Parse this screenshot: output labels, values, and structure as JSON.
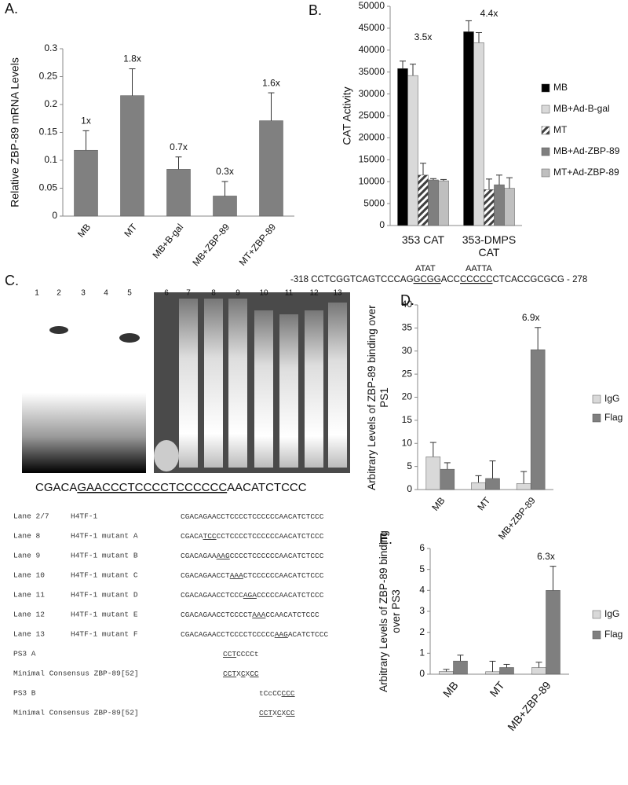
{
  "chart_data": [
    {
      "type": "bar",
      "panel": "A.",
      "ylabel": "Relative ZBP-89 mRNA Levels",
      "categories": [
        "MB",
        "MT",
        "MB+B-gal",
        "MB+ZBP-89",
        "MT+ZBP-89"
      ],
      "values": [
        0.118,
        0.216,
        0.084,
        0.036,
        0.171
      ],
      "errors": [
        0.035,
        0.048,
        0.022,
        0.026,
        0.05
      ],
      "color": "#808080",
      "annotations": [
        "1x",
        "1.8x",
        "0.7x",
        "0.3x",
        "1.6x"
      ],
      "ylim": [
        0,
        0.3
      ],
      "yticks": [
        0,
        0.05,
        0.1,
        0.15,
        0.2,
        0.25,
        0.3
      ]
    },
    {
      "type": "bar",
      "panel": "B.",
      "ylabel": "CAT Activity",
      "categories": [
        "353 CAT",
        "353-DMPS CAT"
      ],
      "series": [
        {
          "name": "MB",
          "color": "#000000",
          "values": [
            35800,
            44200
          ],
          "errors": [
            1700,
            2500
          ]
        },
        {
          "name": "MB+Ad-B-gal",
          "color": "#d9d9d9",
          "values": [
            34200,
            41700
          ],
          "errors": [
            2600,
            2300
          ]
        },
        {
          "name": "MT",
          "color": "#404040",
          "pattern": "hatch",
          "values": [
            11500,
            8200
          ],
          "errors": [
            2700,
            2400
          ]
        },
        {
          "name": "MB+Ad-ZBP-89",
          "color": "#7f7f7f",
          "values": [
            10400,
            9300
          ],
          "errors": [
            300,
            2200
          ]
        },
        {
          "name": "MT+Ad-ZBP-89",
          "color": "#bfbfbf",
          "values": [
            10200,
            8500
          ],
          "errors": [
            300,
            2400
          ]
        }
      ],
      "annotations": [
        "3.5x",
        "4.4x"
      ],
      "legend": "right",
      "ylim": [
        0,
        50000
      ],
      "yticks": [
        0,
        5000,
        10000,
        15000,
        20000,
        25000,
        30000,
        35000,
        40000,
        45000,
        50000
      ]
    },
    {
      "type": "bar",
      "panel": "D.",
      "ylabel": "Arbitrary Levels of ZBP-89 binding over PS1",
      "categories": [
        "MB",
        "MT",
        "MB+ZBP-89"
      ],
      "series": [
        {
          "name": "IgG",
          "color": "#d9d9d9",
          "values": [
            7.1,
            1.5,
            1.3
          ],
          "errors": [
            3.1,
            1.5,
            2.6
          ]
        },
        {
          "name": "Flag",
          "color": "#7f7f7f",
          "values": [
            4.4,
            2.4,
            30.3
          ],
          "errors": [
            1.4,
            3.8,
            4.8
          ]
        }
      ],
      "annotations": [
        null,
        null,
        "6.9x"
      ],
      "legend": "right",
      "ylim": [
        0,
        40
      ],
      "yticks": [
        0,
        5,
        10,
        15,
        20,
        25,
        30,
        35,
        40
      ]
    },
    {
      "type": "bar",
      "panel": "E.",
      "ylabel": "Arbitrary Levels of ZBP-89 binding over PS3",
      "categories": [
        "MB",
        "MT",
        "MB+ZBP-89"
      ],
      "series": [
        {
          "name": "IgG",
          "color": "#d9d9d9",
          "values": [
            0.13,
            0.12,
            0.32
          ],
          "errors": [
            0.1,
            0.5,
            0.25
          ]
        },
        {
          "name": "Flag",
          "color": "#7f7f7f",
          "values": [
            0.63,
            0.32,
            4.0
          ],
          "errors": [
            0.28,
            0.15,
            1.15
          ]
        }
      ],
      "annotations": [
        null,
        null,
        "6.3x"
      ],
      "legend": "right",
      "ylim": [
        0,
        6
      ],
      "yticks": [
        0,
        1,
        2,
        3,
        4,
        5,
        6
      ]
    }
  ],
  "gel": {
    "panel": "C.",
    "lanes": [
      "1",
      "2",
      "3",
      "4",
      "5",
      "6",
      "7",
      "8",
      "9",
      "10",
      "11",
      "12",
      "13"
    ],
    "promoter_marks": [
      "ATAT",
      "AATTA"
    ],
    "promoter": [
      {
        "text": "-318 CCTCGGTCAGTCCCAG",
        "underline": false
      },
      {
        "text": "GCGG",
        "underline": true
      },
      {
        "text": "ACC",
        "underline": false
      },
      {
        "text": "CCCCC",
        "underline": true
      },
      {
        "text": "CTCACCGCGCG - 278",
        "underline": false
      }
    ],
    "probe": [
      {
        "text": "CGACA",
        "underline": false
      },
      {
        "text": "GAACCCTCCCCTCCCCCC",
        "underline": true
      },
      {
        "text": "AACATCTCCC",
        "underline": false
      }
    ]
  },
  "lane_table": [
    {
      "label": "Lane 2/7",
      "name": "H4TF-1",
      "seq": [
        {
          "text": "CGACAGAACCTCCCCTCCCCCCAACATCTCCC",
          "underline": false
        }
      ]
    },
    {
      "label": "Lane 8",
      "name": "H4TF-1 mutant A",
      "seq": [
        {
          "text": "CGACA",
          "underline": false
        },
        {
          "text": "TCC",
          "underline": true
        },
        {
          "text": "CCTCCCCTCCCCCCAACATCTCCC",
          "underline": false
        }
      ]
    },
    {
      "label": "Lane 9",
      "name": "H4TF-1 mutant B",
      "seq": [
        {
          "text": "CGACAGAA",
          "underline": false
        },
        {
          "text": "AAG",
          "underline": true
        },
        {
          "text": "CCCCTCCCCCCAACATCTCCC",
          "underline": false
        }
      ]
    },
    {
      "label": "Lane 10",
      "name": "H4TF-1 mutant C",
      "seq": [
        {
          "text": "CGACAGAACCT",
          "underline": false
        },
        {
          "text": "AAA",
          "underline": true
        },
        {
          "text": "CTCCCCCCAACATCTCCC",
          "underline": false
        }
      ]
    },
    {
      "label": "Lane 11",
      "name": "H4TF-1 mutant D",
      "seq": [
        {
          "text": "CGACAGAACCTCCC",
          "underline": false
        },
        {
          "text": "AGA",
          "underline": true
        },
        {
          "text": "CCCCCAACATCTCCC",
          "underline": false
        }
      ]
    },
    {
      "label": "Lane 12",
      "name": "H4TF-1 mutant E",
      "seq": [
        {
          "text": "CGACAGAACCTCCCCT",
          "underline": false
        },
        {
          "text": "AAA",
          "underline": true
        },
        {
          "text": "CCAACATCTCCC",
          "underline": false
        }
      ]
    },
    {
      "label": "Lane 13",
      "name": "H4TF-1 mutant F",
      "seq": [
        {
          "text": "CGACAGAACCTCCCCTCCCCC",
          "underline": false
        },
        {
          "text": "AAG",
          "underline": true
        },
        {
          "text": "ACATCTCCC",
          "underline": false
        }
      ]
    },
    {
      "label": "PS3 A",
      "seq": [
        {
          "text": "CCT",
          "underline": true
        },
        {
          "text": "CCCCt",
          "underline": false
        }
      ]
    },
    {
      "label": "Minimal Consensus ZBP-89[52]",
      "seq": [
        {
          "text": "CCT",
          "underline": true
        },
        {
          "text": "X",
          "underline": false
        },
        {
          "text": "C",
          "underline": true
        },
        {
          "text": "X",
          "underline": false
        },
        {
          "text": "CC",
          "underline": true
        }
      ]
    },
    {
      "label": "PS3 B",
      "seq": [
        {
          "text": "tCcCC",
          "underline": false
        },
        {
          "text": "CCC",
          "underline": true
        }
      ]
    },
    {
      "label": "Minimal Consensus ZBP-89[52]",
      "seq": [
        {
          "text": "CCT",
          "underline": true
        },
        {
          "text": "X",
          "underline": false
        },
        {
          "text": "C",
          "underline": true
        },
        {
          "text": "X",
          "underline": false
        },
        {
          "text": "CC",
          "underline": true
        }
      ]
    }
  ]
}
